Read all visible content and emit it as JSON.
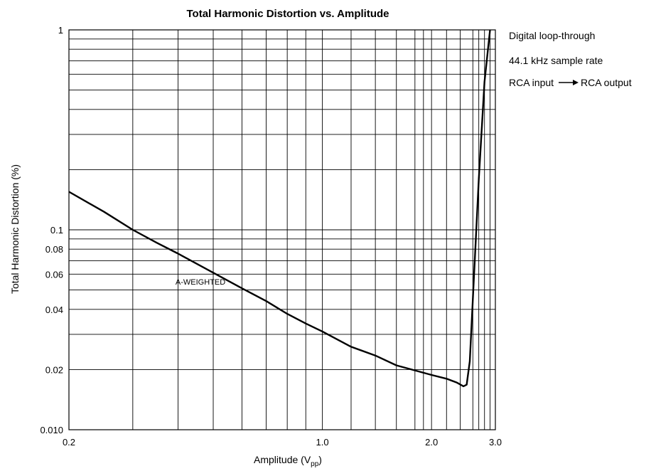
{
  "chart_data": {
    "type": "line",
    "title": "Total Harmonic Distortion vs. Amplitude",
    "xlabel_main": "Amplitude (V",
    "xlabel_sub": "pp",
    "xlabel_end": ")",
    "ylabel": "Total Harmonic Distortion (%)",
    "x_scale": "log",
    "y_scale": "log",
    "xlim": [
      0.2,
      3.0
    ],
    "ylim": [
      0.01,
      1.0
    ],
    "grid": true,
    "x_tick_labels": [
      {
        "value": 0.2,
        "label": "0.2"
      },
      {
        "value": 1.0,
        "label": "1.0"
      },
      {
        "value": 2.0,
        "label": "2.0"
      },
      {
        "value": 3.0,
        "label": "3.0"
      }
    ],
    "y_tick_labels": [
      {
        "value": 1.0,
        "label": "1"
      },
      {
        "value": 0.1,
        "label": "0.1"
      },
      {
        "value": 0.08,
        "label": "0.08"
      },
      {
        "value": 0.06,
        "label": "0.06"
      },
      {
        "value": 0.04,
        "label": "0.04"
      },
      {
        "value": 0.02,
        "label": "0.02"
      },
      {
        "value": 0.01,
        "label": "0.010"
      }
    ],
    "annotations": [
      "Digital loop-through",
      "44.1 kHz sample rate"
    ],
    "annotation_rca_in": "RCA input",
    "annotation_rca_out": "RCA output",
    "series": [
      {
        "label": "A-WEIGHTED",
        "color": "#000000",
        "points": [
          [
            0.2,
            0.155
          ],
          [
            0.25,
            0.123
          ],
          [
            0.3,
            0.1
          ],
          [
            0.35,
            0.086
          ],
          [
            0.4,
            0.076
          ],
          [
            0.5,
            0.061
          ],
          [
            0.6,
            0.051
          ],
          [
            0.7,
            0.044
          ],
          [
            0.8,
            0.038
          ],
          [
            0.9,
            0.034
          ],
          [
            1.0,
            0.031
          ],
          [
            1.2,
            0.026
          ],
          [
            1.4,
            0.0235
          ],
          [
            1.6,
            0.021
          ],
          [
            1.8,
            0.0198
          ],
          [
            2.0,
            0.0188
          ],
          [
            2.2,
            0.018
          ],
          [
            2.35,
            0.0172
          ],
          [
            2.45,
            0.0165
          ],
          [
            2.5,
            0.0168
          ],
          [
            2.55,
            0.022
          ],
          [
            2.6,
            0.045
          ],
          [
            2.7,
            0.18
          ],
          [
            2.8,
            0.55
          ],
          [
            2.9,
            1.0
          ]
        ]
      }
    ]
  }
}
